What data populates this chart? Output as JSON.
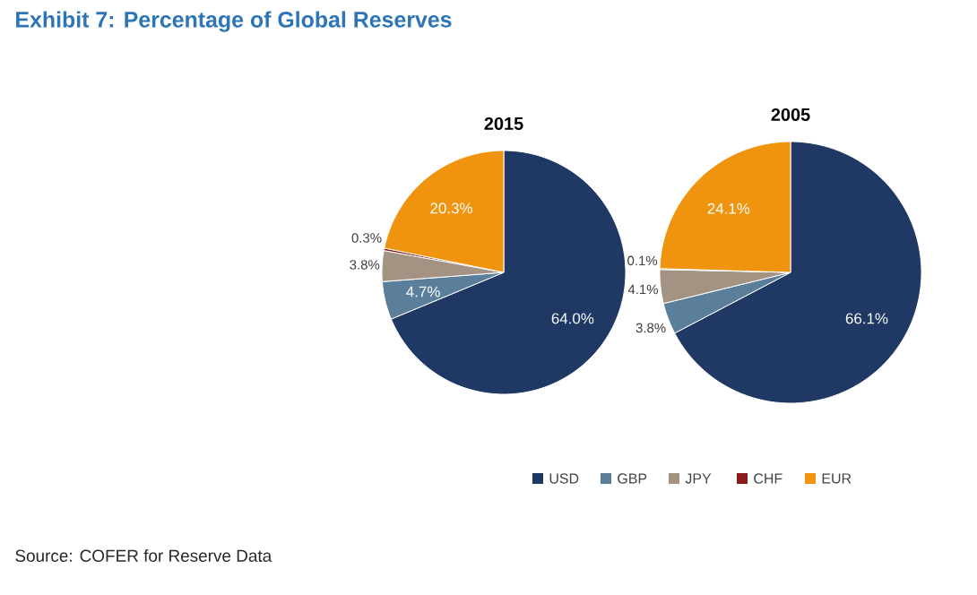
{
  "chart_data": [
    {
      "type": "pie",
      "title": "2015",
      "categories": [
        "USD",
        "GBP",
        "JPY",
        "CHF",
        "EUR"
      ],
      "values": [
        64.0,
        4.7,
        3.8,
        0.3,
        20.3
      ],
      "value_labels": [
        "64.0%",
        "4.7%",
        "3.8%",
        "0.3%",
        "20.3%"
      ],
      "colors": [
        "#1f3864",
        "#5b7f9a",
        "#a39382",
        "#8b1a1a",
        "#f0940f"
      ],
      "legend": "bottom",
      "annotations": [
        "Exhibit 7: Percentage of Global Reserves",
        "Source: COFER for Reserve Data"
      ]
    },
    {
      "type": "pie",
      "title": "2005",
      "values": [
        66.1,
        3.8,
        4.1,
        0.1,
        24.1
      ],
      "value_labels": [
        "66.1%",
        "3.8%",
        "4.1%",
        "0.1%",
        "24.1%"
      ],
      "colors": [
        "#1f3864",
        "#5b7f9a",
        "#a39382",
        "#8b1a1a",
        "#f0940f"
      ]
    }
  ]
}
